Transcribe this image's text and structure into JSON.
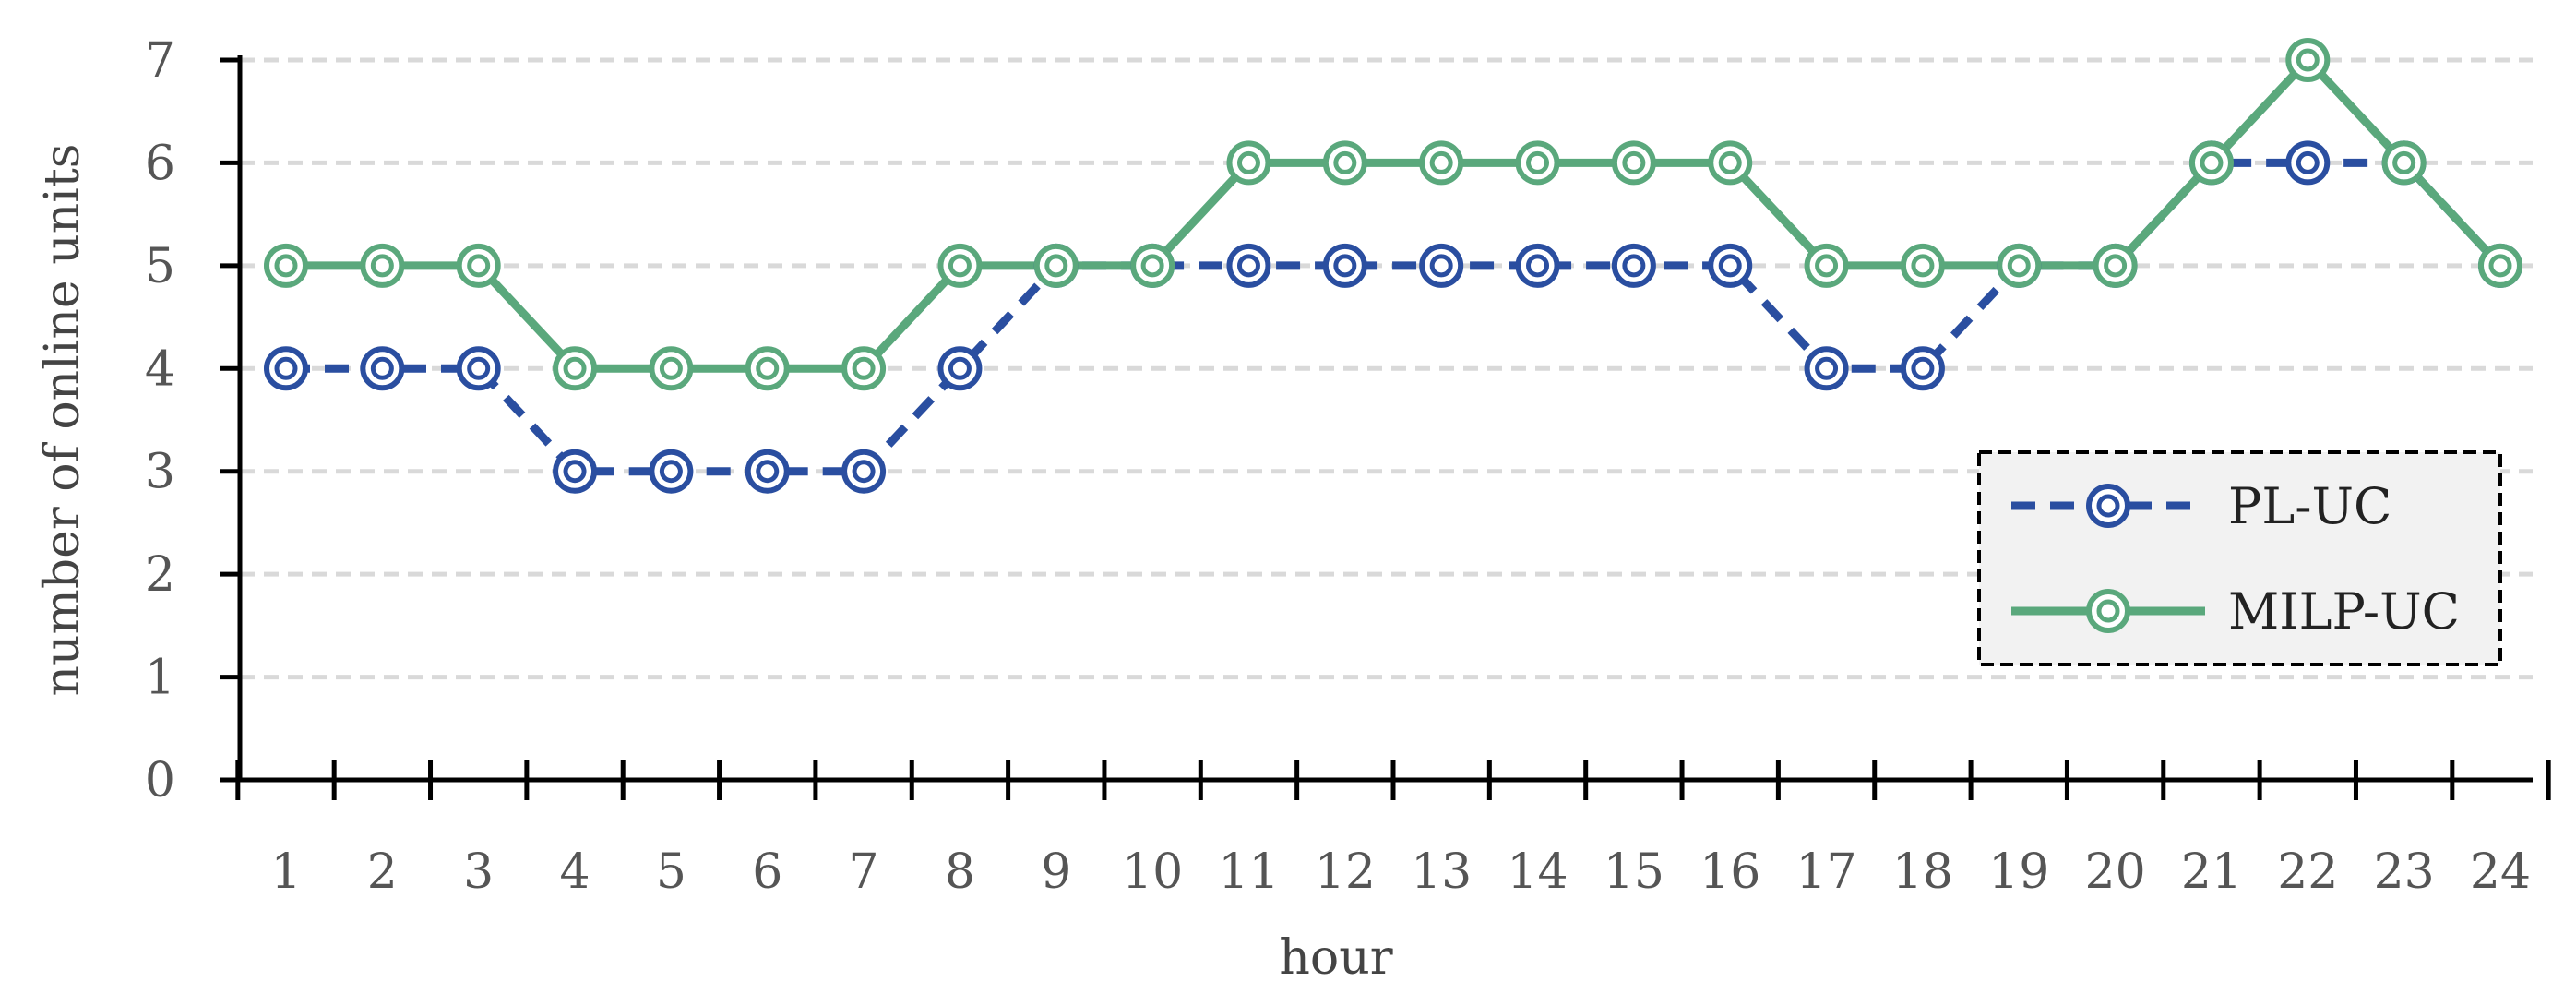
{
  "chart_data": {
    "type": "line",
    "title": "",
    "xlabel": "hour",
    "ylabel": "number of online units",
    "categories": [
      "1",
      "2",
      "3",
      "4",
      "5",
      "6",
      "7",
      "8",
      "9",
      "10",
      "11",
      "12",
      "13",
      "14",
      "15",
      "16",
      "17",
      "18",
      "19",
      "20",
      "21",
      "22",
      "23",
      "24"
    ],
    "ylim": [
      0,
      7
    ],
    "yticks": [
      "0",
      "1",
      "2",
      "3",
      "4",
      "5",
      "6",
      "7"
    ],
    "grid": true,
    "legend_position": "right",
    "series": [
      {
        "name": "PL-UC",
        "color": "#2a4ea0",
        "line_style": "dashed",
        "marker": "double-circle",
        "values": [
          4,
          4,
          4,
          3,
          3,
          3,
          3,
          4,
          5,
          5,
          5,
          5,
          5,
          5,
          5,
          5,
          4,
          4,
          5,
          5,
          6,
          6,
          6,
          5
        ]
      },
      {
        "name": "MILP-UC",
        "color": "#5aa87c",
        "line_style": "solid",
        "marker": "double-circle",
        "values": [
          5,
          5,
          5,
          4,
          4,
          4,
          4,
          5,
          5,
          5,
          6,
          6,
          6,
          6,
          6,
          6,
          5,
          5,
          5,
          5,
          6,
          7,
          6,
          5
        ]
      }
    ]
  }
}
